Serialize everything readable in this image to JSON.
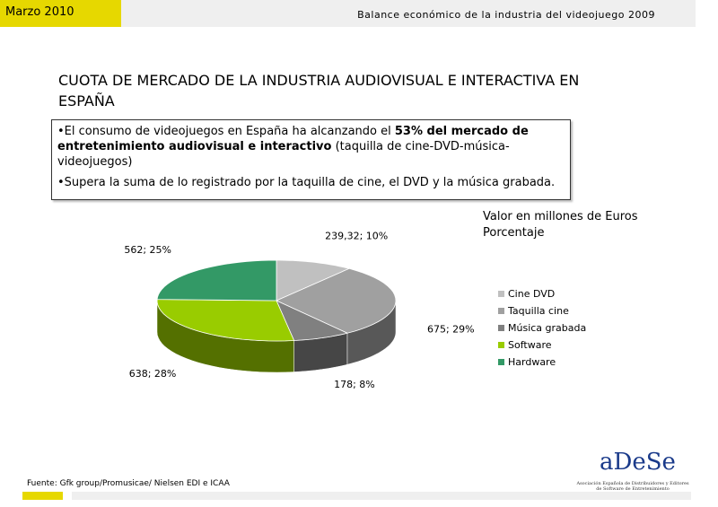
{
  "header": {
    "date": "Marzo 2010",
    "title": "Balance económico de la industria del videojuego 2009"
  },
  "heading": [
    "CUOTA DE MERCADO DE LA INDUSTRIA AUDIOVISUAL  E INTERACTIVA EN",
    "ESPAÑA"
  ],
  "bullets": [
    [
      "•El consumo de  videojuegos en España ha alcanzando el ",
      "53% del mercado de entretenimiento audiovisual e interactivo",
      " (taquilla de cine-DVD-música-videojuegos)"
    ],
    [
      "•Supera la suma de lo registrado por la taquilla de cine, el DVD y la música grabada."
    ]
  ],
  "source": "Fuente: Gfk group/Promusicae/ Nielsen EDI e ICAA",
  "logo": {
    "name": "aDeSe",
    "subtitle": [
      "Asociación Española de Distribuidores y Editores",
      "de Software de Entretenimiento"
    ]
  },
  "chart_data": {
    "type": "pie",
    "subtitle": [
      "Valor en millones de Euros",
      "Porcentaje"
    ],
    "categories": [
      "Cine DVD",
      "Taquilla cine",
      "Música grabada",
      "Software",
      "Hardware"
    ],
    "values": [
      239.32,
      675,
      178,
      638,
      562
    ],
    "value_labels": [
      "239,32; 10%",
      "675; 29%",
      "178; 8%",
      "638; 28%",
      "562; 25%"
    ],
    "colors": [
      "#c0c0c0",
      "#a0a0a0",
      "#808080",
      "#99cc00",
      "#339966"
    ]
  }
}
